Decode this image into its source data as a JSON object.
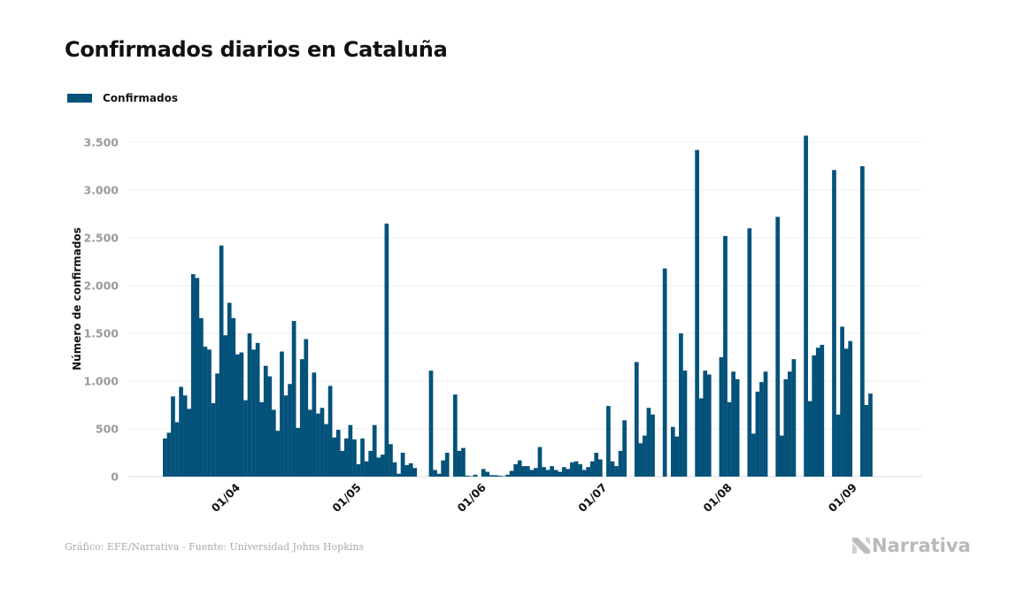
{
  "title": "Confirmados diarios en Cataluña",
  "footer": {
    "source": "Gráfico: EFE/Narrativa - Fuente: Universidad Johns Hopkins",
    "brand": "Narrativa"
  },
  "chart_data": {
    "type": "bar",
    "title": "Confirmados diarios en Cataluña",
    "xlabel": "",
    "ylabel": "Número de confirmados",
    "ylim": [
      0,
      3700
    ],
    "yticks": [
      0,
      500,
      1000,
      1500,
      2000,
      2500,
      3000,
      3500
    ],
    "ytick_labels": [
      "0",
      "500",
      "1.000",
      "1.500",
      "2.000",
      "2.500",
      "3.000",
      "3.500"
    ],
    "xtick_labels": [
      "01/04",
      "01/05",
      "01/06",
      "01/07",
      "01/08",
      "01/09"
    ],
    "xtick_day_index": [
      18,
      48,
      79,
      109,
      140,
      171
    ],
    "grid": true,
    "color": "#04527a",
    "legend": {
      "position": "top-left",
      "entries": [
        "Confirmados"
      ]
    },
    "start_date": "14/03",
    "series": [
      {
        "name": "Confirmados",
        "values": [
          400,
          460,
          840,
          570,
          940,
          850,
          710,
          2120,
          2080,
          1660,
          1360,
          1330,
          770,
          1080,
          2420,
          1480,
          1820,
          1660,
          1280,
          1300,
          800,
          1500,
          1330,
          1400,
          780,
          1160,
          1050,
          700,
          480,
          1310,
          850,
          970,
          1630,
          510,
          1230,
          1440,
          700,
          1090,
          660,
          720,
          550,
          950,
          410,
          490,
          270,
          400,
          540,
          390,
          130,
          400,
          160,
          270,
          540,
          200,
          230,
          2650,
          340,
          150,
          30,
          250,
          120,
          140,
          90,
          0,
          0,
          0,
          1110,
          70,
          30,
          170,
          250,
          0,
          860,
          270,
          300,
          10,
          5,
          20,
          0,
          80,
          50,
          15,
          15,
          10,
          5,
          20,
          60,
          130,
          170,
          110,
          110,
          70,
          90,
          310,
          100,
          70,
          110,
          70,
          50,
          100,
          80,
          150,
          160,
          130,
          70,
          100,
          160,
          250,
          180,
          0,
          740,
          160,
          110,
          270,
          590,
          0,
          0,
          1200,
          350,
          430,
          720,
          650,
          0,
          0,
          2180,
          0,
          520,
          420,
          1500,
          1110,
          0,
          0,
          3420,
          820,
          1110,
          1070,
          0,
          0,
          1250,
          2520,
          780,
          1100,
          1020,
          0,
          0,
          2600,
          450,
          890,
          990,
          1100,
          0,
          0,
          2720,
          430,
          1020,
          1100,
          1230,
          0,
          0,
          3570,
          790,
          1270,
          1350,
          1380,
          0,
          0,
          3210,
          650,
          1570,
          1340,
          1420,
          0,
          0,
          3250,
          750,
          870
        ]
      }
    ]
  }
}
